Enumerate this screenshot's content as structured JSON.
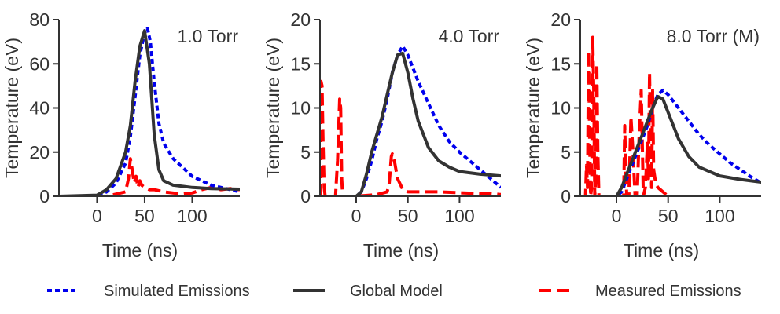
{
  "colors": {
    "simulated": "#0000ee",
    "global": "#333333",
    "measured": "#ff0000"
  },
  "legend": [
    {
      "key": "simulated",
      "label": "Simulated Emissions",
      "style": "dotted"
    },
    {
      "key": "global",
      "label": "Global Model",
      "style": "solid"
    },
    {
      "key": "measured",
      "label": "Measured Emissions",
      "style": "dashed"
    }
  ],
  "chart_data": [
    {
      "type": "line",
      "annotation": "1.0 Torr",
      "xlabel": "Time (ns)",
      "ylabel": "Temperature (eV)",
      "xlim": [
        -40,
        150
      ],
      "ylim": [
        0,
        80
      ],
      "xticks": [
        0,
        50,
        100
      ],
      "yticks": [
        0,
        20,
        40,
        60,
        80
      ],
      "series": [
        {
          "name": "Simulated Emissions",
          "key": "simulated",
          "x": [
            -40,
            0,
            10,
            20,
            30,
            35,
            40,
            45,
            50,
            53,
            56,
            60,
            65,
            70,
            80,
            90,
            100,
            120,
            150
          ],
          "y": [
            0,
            0,
            2,
            6,
            15,
            27,
            45,
            64,
            74,
            76,
            70,
            52,
            33,
            24,
            17,
            13,
            9,
            5,
            2
          ]
        },
        {
          "name": "Global Model",
          "key": "global",
          "x": [
            -40,
            0,
            10,
            20,
            30,
            35,
            40,
            45,
            50,
            55,
            60,
            65,
            70,
            80,
            100,
            120,
            150
          ],
          "y": [
            0,
            0.5,
            3,
            8,
            20,
            32,
            52,
            68,
            75,
            60,
            28,
            12,
            7,
            5,
            4,
            3.5,
            3.2
          ]
        },
        {
          "name": "Measured Emissions",
          "key": "measured",
          "x": [
            -40,
            0,
            10,
            20,
            30,
            33,
            35,
            37,
            39,
            41,
            43,
            45,
            47,
            50,
            55,
            60,
            70,
            80,
            90,
            100,
            110,
            120,
            130,
            140,
            150
          ],
          "y": [
            0,
            0,
            0,
            1,
            2,
            8,
            17,
            12,
            6,
            9,
            4,
            7,
            5,
            4,
            3,
            3,
            2,
            1.5,
            1,
            1.5,
            3,
            4,
            3,
            3.5,
            3
          ]
        }
      ]
    },
    {
      "type": "line",
      "annotation": "4.0 Torr",
      "xlabel": "Time (ns)",
      "ylabel": "Temperature (eV)",
      "xlim": [
        -35,
        140
      ],
      "ylim": [
        0,
        20
      ],
      "xticks": [
        0,
        50,
        100
      ],
      "yticks": [
        0,
        5,
        10,
        15,
        20
      ],
      "series": [
        {
          "name": "Simulated Emissions",
          "key": "simulated",
          "x": [
            -35,
            0,
            5,
            10,
            15,
            20,
            25,
            30,
            35,
            40,
            45,
            50,
            60,
            70,
            80,
            90,
            100,
            110,
            120,
            130,
            140
          ],
          "y": [
            0,
            0,
            0.5,
            2,
            4,
            6.5,
            8.5,
            11,
            14,
            16,
            17,
            16,
            13,
            10.5,
            8,
            6.2,
            5,
            4,
            3,
            2,
            1
          ]
        },
        {
          "name": "Global Model",
          "key": "global",
          "x": [
            -35,
            0,
            5,
            10,
            15,
            20,
            25,
            30,
            35,
            40,
            45,
            50,
            55,
            60,
            70,
            80,
            90,
            100,
            120,
            140
          ],
          "y": [
            0,
            0,
            0.5,
            2.5,
            5,
            7,
            9,
            11.5,
            14,
            16,
            16.2,
            14,
            11,
            8.5,
            5.5,
            4,
            3.3,
            2.8,
            2.5,
            2.3
          ]
        },
        {
          "name": "Measured Emissions",
          "key": "measured",
          "x": [
            -35,
            -34,
            -33,
            -32,
            -31,
            -30,
            -29,
            -20,
            -18,
            -16,
            -15,
            -14,
            -13,
            0,
            20,
            30,
            32,
            33,
            34,
            35,
            37,
            40,
            45,
            50,
            60,
            80,
            100,
            120,
            130,
            140
          ],
          "y": [
            0,
            13,
            12.5,
            6,
            1,
            0,
            0,
            0,
            4,
            11,
            10,
            2,
            0,
            0,
            0.2,
            0.5,
            1.5,
            3,
            4.5,
            4.8,
            4,
            2,
            0.8,
            0.5,
            0.5,
            0.5,
            0.4,
            0.3,
            0.3,
            0.2
          ]
        }
      ]
    },
    {
      "type": "line",
      "annotation": "8.0 Torr (M)",
      "xlabel": "Time (ns)",
      "ylabel": "Temperature (eV)",
      "xlim": [
        -35,
        140
      ],
      "ylim": [
        0,
        20
      ],
      "xticks": [
        0,
        50,
        100
      ],
      "yticks": [
        0,
        5,
        10,
        15,
        20
      ],
      "series": [
        {
          "name": "Simulated Emissions",
          "key": "simulated",
          "x": [
            -35,
            0,
            5,
            10,
            15,
            20,
            25,
            30,
            35,
            40,
            45,
            50,
            60,
            70,
            80,
            90,
            100,
            110,
            120,
            130,
            140
          ],
          "y": [
            0,
            0,
            0.5,
            2,
            3.5,
            5,
            6.5,
            8,
            10,
            11.5,
            12,
            11.5,
            10,
            8.5,
            7,
            5.8,
            4.8,
            3.8,
            3,
            2.2,
            1.5
          ]
        },
        {
          "name": "Global Model",
          "key": "global",
          "x": [
            -35,
            0,
            5,
            10,
            15,
            20,
            25,
            30,
            35,
            40,
            45,
            50,
            60,
            70,
            80,
            100,
            120,
            140
          ],
          "y": [
            0,
            0,
            1,
            2.5,
            4,
            5.5,
            7,
            8.5,
            10,
            11.3,
            11,
            9.5,
            6.5,
            4.5,
            3.3,
            2.3,
            1.9,
            1.6
          ]
        },
        {
          "name": "Measured Emissions",
          "key": "measured",
          "x": [
            -35,
            -30,
            -29,
            -28,
            -27,
            -26,
            -25,
            -24,
            -23,
            -22,
            -21,
            -20,
            -19,
            -18,
            -17,
            -16,
            -15,
            -14,
            -13,
            -12,
            -11,
            -10,
            -5,
            0,
            5,
            7,
            8,
            9,
            10,
            12,
            14,
            16,
            18,
            20,
            22,
            24,
            26,
            28,
            30,
            31,
            32,
            33,
            34,
            35,
            36,
            38,
            40,
            45,
            50,
            140
          ],
          "y": [
            0,
            0,
            3.5,
            1,
            16.5,
            7,
            0,
            1,
            18,
            12,
            0,
            2,
            15,
            5,
            0,
            0,
            0,
            0,
            0,
            0,
            0,
            0,
            0,
            0,
            0,
            0,
            8,
            3,
            0,
            0,
            9,
            5,
            0,
            0,
            7,
            12,
            0,
            1,
            6,
            2,
            14,
            6,
            1,
            12,
            3,
            1.5,
            1,
            0.5,
            0,
            0
          ]
        }
      ]
    }
  ]
}
